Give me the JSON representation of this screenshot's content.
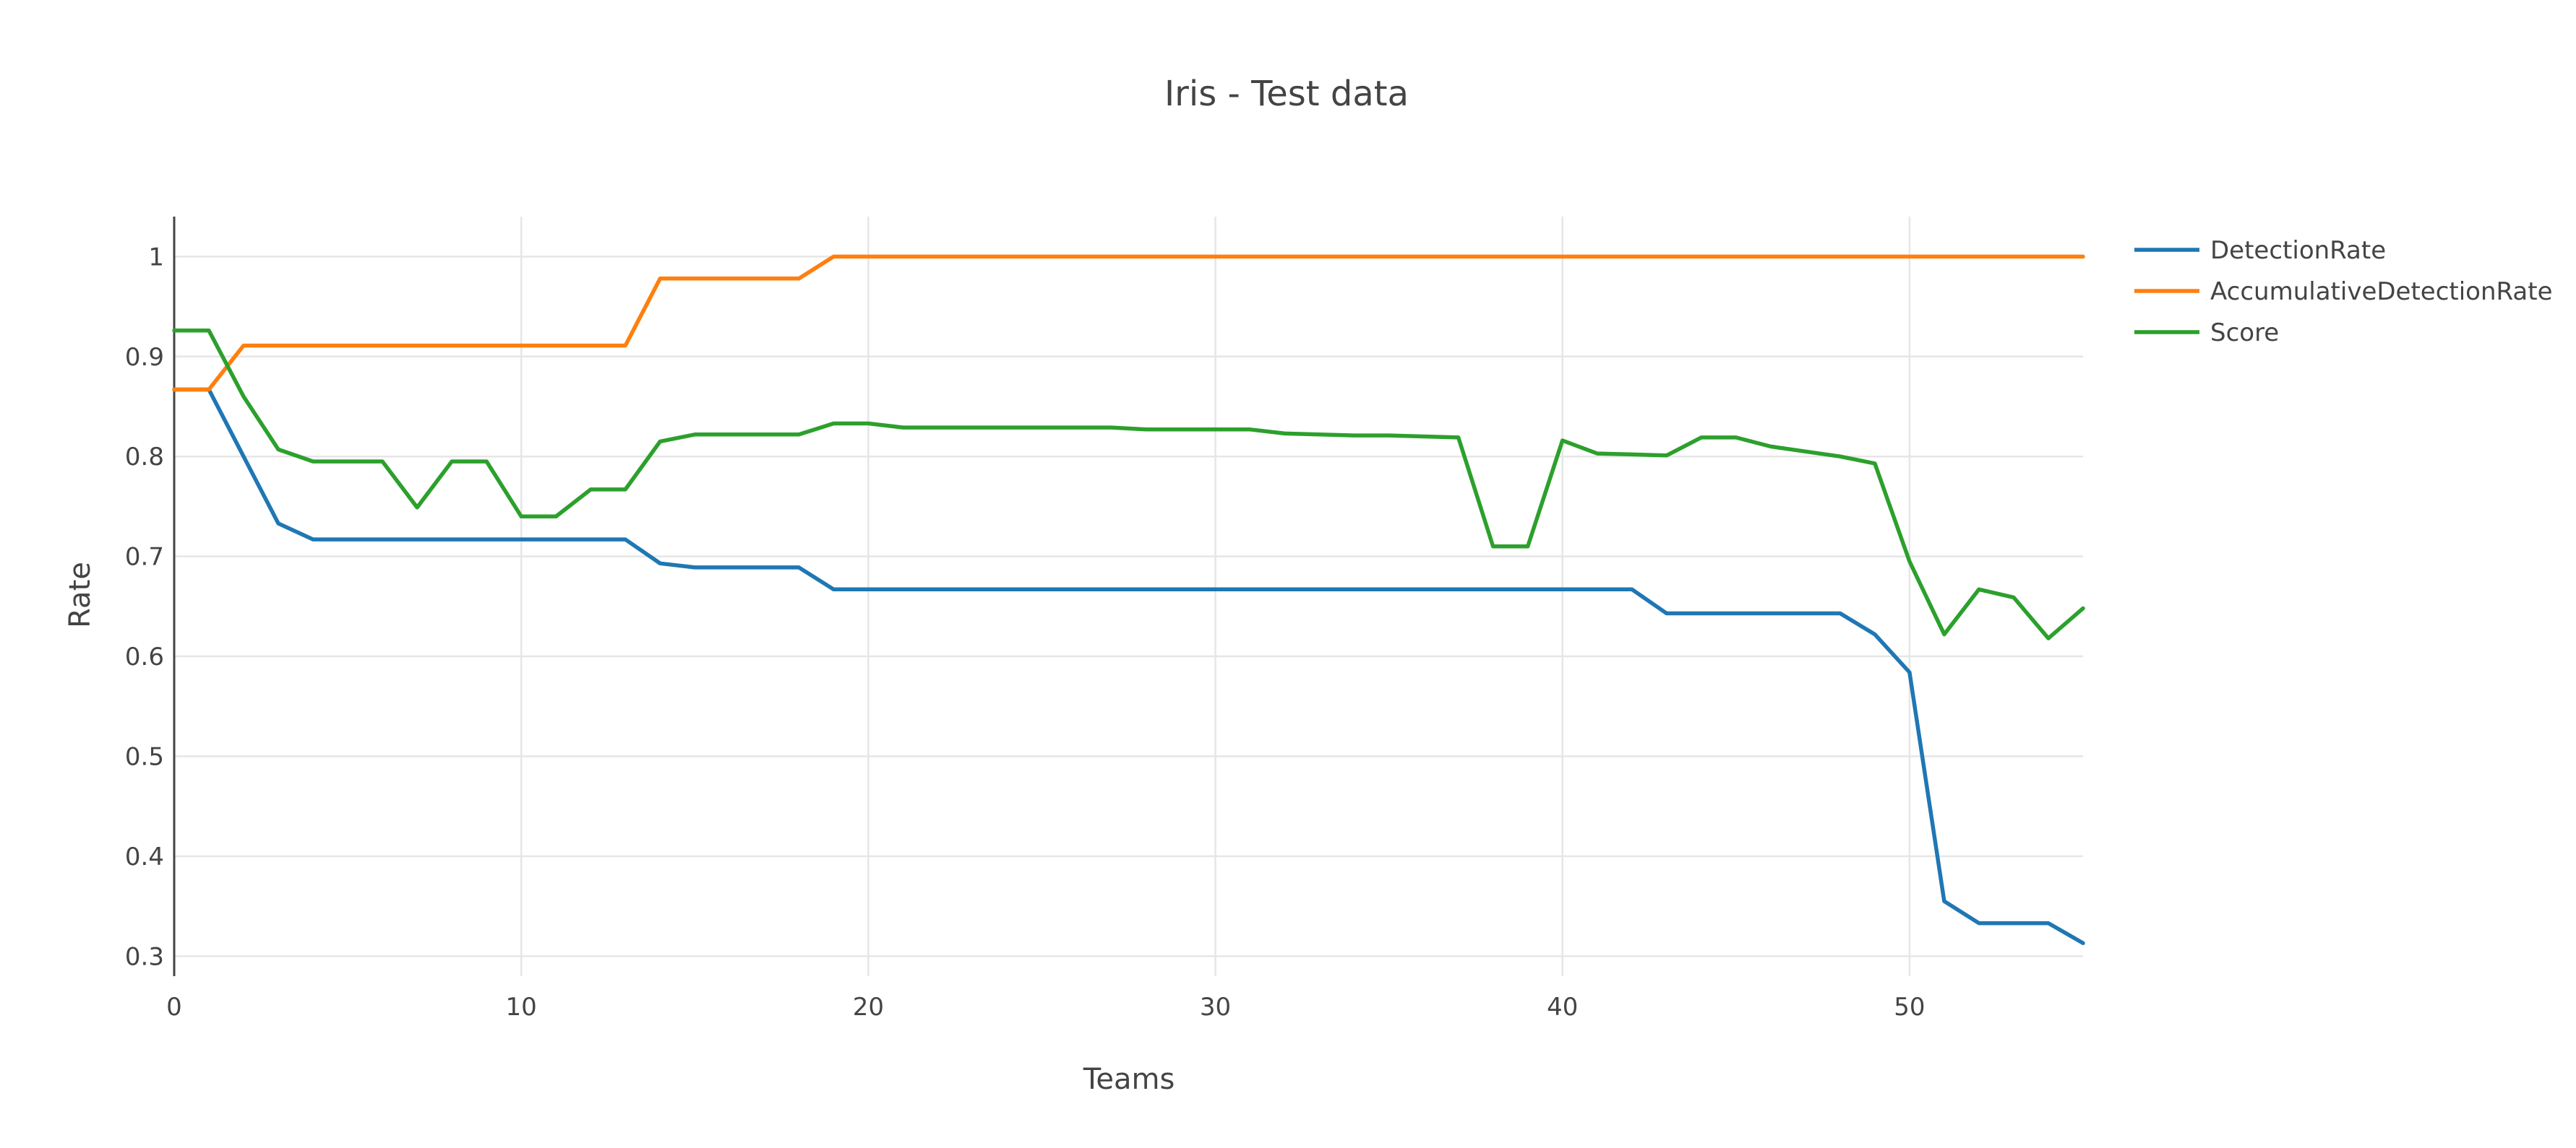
{
  "chart_data": {
    "type": "line",
    "title": "Iris - Test data",
    "xlabel": "Teams",
    "ylabel": "Rate",
    "xlim": [
      0,
      55
    ],
    "ylim": [
      0.28,
      1.04
    ],
    "x_ticks": [
      0,
      10,
      20,
      30,
      40,
      50
    ],
    "y_ticks": [
      0.3,
      0.4,
      0.5,
      0.6,
      0.7,
      0.8,
      0.9,
      1
    ],
    "grid": true,
    "legend_position": "top-right",
    "x": [
      0,
      1,
      2,
      3,
      4,
      5,
      6,
      7,
      8,
      9,
      10,
      11,
      12,
      13,
      14,
      15,
      16,
      17,
      18,
      19,
      20,
      21,
      22,
      23,
      24,
      25,
      26,
      27,
      28,
      29,
      30,
      31,
      32,
      33,
      34,
      35,
      36,
      37,
      38,
      39,
      40,
      41,
      42,
      43,
      44,
      45,
      46,
      47,
      48,
      49,
      50,
      51,
      52,
      53,
      54,
      55
    ],
    "series": [
      {
        "name": "DetectionRate",
        "color": "#1f77b4",
        "values": [
          0.867,
          0.867,
          0.8,
          0.733,
          0.717,
          0.717,
          0.717,
          0.717,
          0.717,
          0.717,
          0.717,
          0.717,
          0.717,
          0.717,
          0.693,
          0.689,
          0.689,
          0.689,
          0.689,
          0.667,
          0.667,
          0.667,
          0.667,
          0.667,
          0.667,
          0.667,
          0.667,
          0.667,
          0.667,
          0.667,
          0.667,
          0.667,
          0.667,
          0.667,
          0.667,
          0.667,
          0.667,
          0.667,
          0.667,
          0.667,
          0.667,
          0.667,
          0.667,
          0.643,
          0.643,
          0.643,
          0.643,
          0.643,
          0.643,
          0.622,
          0.584,
          0.355,
          0.333,
          0.333,
          0.333,
          0.313
        ]
      },
      {
        "name": "AccumulativeDetectionRate",
        "color": "#ff7f0e",
        "values": [
          0.867,
          0.867,
          0.911,
          0.911,
          0.911,
          0.911,
          0.911,
          0.911,
          0.911,
          0.911,
          0.911,
          0.911,
          0.911,
          0.911,
          0.978,
          0.978,
          0.978,
          0.978,
          0.978,
          1,
          1,
          1,
          1,
          1,
          1,
          1,
          1,
          1,
          1,
          1,
          1,
          1,
          1,
          1,
          1,
          1,
          1,
          1,
          1,
          1,
          1,
          1,
          1,
          1,
          1,
          1,
          1,
          1,
          1,
          1,
          1,
          1,
          1,
          1,
          1,
          1
        ]
      },
      {
        "name": "Score",
        "color": "#2ca02c",
        "values": [
          0.926,
          0.926,
          0.86,
          0.807,
          0.795,
          0.795,
          0.795,
          0.749,
          0.795,
          0.795,
          0.74,
          0.74,
          0.767,
          0.767,
          0.815,
          0.822,
          0.822,
          0.822,
          0.822,
          0.833,
          0.833,
          0.829,
          0.829,
          0.829,
          0.829,
          0.829,
          0.829,
          0.829,
          0.827,
          0.827,
          0.827,
          0.827,
          0.823,
          0.822,
          0.821,
          0.821,
          0.82,
          0.819,
          0.71,
          0.71,
          0.816,
          0.803,
          0.802,
          0.801,
          0.819,
          0.819,
          0.81,
          0.805,
          0.8,
          0.793,
          0.695,
          0.622,
          0.667,
          0.659,
          0.618,
          0.648
        ]
      }
    ]
  }
}
